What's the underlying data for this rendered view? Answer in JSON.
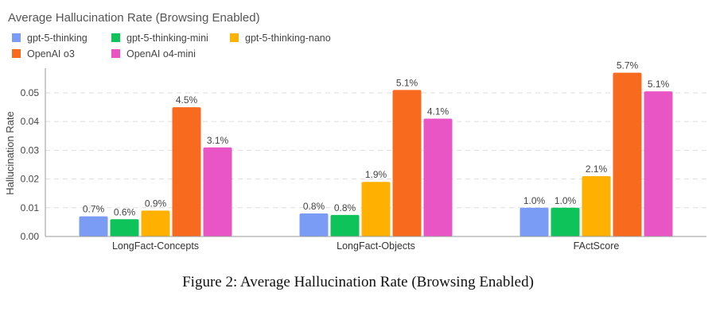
{
  "chart_data": {
    "type": "bar",
    "title": "Average Hallucination Rate (Browsing Enabled)",
    "xlabel": "",
    "ylabel": "Hallucination Rate",
    "ylim": [
      0,
      0.058
    ],
    "yticks": [
      "0.00",
      "0.01",
      "0.02",
      "0.03",
      "0.04",
      "0.05"
    ],
    "ytick_values": [
      0,
      0.01,
      0.02,
      0.03,
      0.04,
      0.05
    ],
    "grid": true,
    "legend_position": "top-left",
    "categories": [
      "LongFact-Concepts",
      "LongFact-Objects",
      "FActScore"
    ],
    "series": [
      {
        "name": "gpt-5-thinking",
        "color": "#7b9cf4",
        "values": [
          0.007,
          0.008,
          0.01
        ],
        "labels": [
          "0.7%",
          "0.8%",
          "1.0%"
        ]
      },
      {
        "name": "gpt-5-thinking-mini",
        "color": "#0ec35a",
        "values": [
          0.006,
          0.0075,
          0.01
        ],
        "labels": [
          "0.6%",
          "0.8%",
          "1.0%"
        ]
      },
      {
        "name": "gpt-5-thinking-nano",
        "color": "#ffb000",
        "values": [
          0.009,
          0.019,
          0.021
        ],
        "labels": [
          "0.9%",
          "1.9%",
          "2.1%"
        ]
      },
      {
        "name": "OpenAI o3",
        "color": "#f86b1f",
        "values": [
          0.045,
          0.051,
          0.057
        ],
        "labels": [
          "4.5%",
          "5.1%",
          "5.7%"
        ]
      },
      {
        "name": "OpenAI o4-mini",
        "color": "#ea55c6",
        "values": [
          0.031,
          0.041,
          0.0505
        ],
        "labels": [
          "3.1%",
          "4.1%",
          "5.1%"
        ]
      }
    ]
  },
  "caption": "Figure 2: Average Hallucination Rate (Browsing Enabled)"
}
